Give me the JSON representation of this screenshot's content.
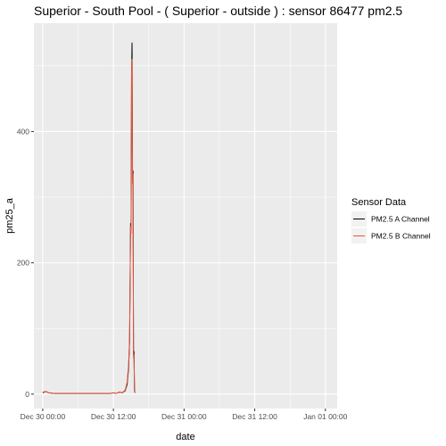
{
  "chart_data": {
    "type": "line",
    "title": "Superior - South Pool - ( Superior - outside ) : sensor 86477 pm2.5",
    "xlabel": "date",
    "ylabel": "pm25_a",
    "x_ticks": [
      "Dec 30 00:00",
      "Dec 30 12:00",
      "Dec 31 00:00",
      "Dec 31 12:00",
      "Jan 01 00:00"
    ],
    "y_ticks": [
      "0",
      "200",
      "400"
    ],
    "xlim": [
      "Dec 29 22:30",
      "Jan 01 02:00"
    ],
    "ylim": [
      -22,
      565
    ],
    "grid": true,
    "background": "#EBEBEB",
    "legend": {
      "title": "Sensor Data",
      "placement": "right",
      "entries": [
        {
          "label": "PM2.5 A Channel",
          "color": "#000000"
        },
        {
          "label": "PM2.5 B Channel",
          "color": "#E8553D"
        }
      ]
    },
    "series": [
      {
        "name": "PM2.5 A Channel",
        "color": "#000000",
        "points": [
          [
            "Dec 30 00:00",
            2
          ],
          [
            "Dec 30 00:30",
            4
          ],
          [
            "Dec 30 01:00",
            2
          ],
          [
            "Dec 30 02:00",
            1
          ],
          [
            "Dec 30 06:00",
            1
          ],
          [
            "Dec 30 10:00",
            1
          ],
          [
            "Dec 30 11:30",
            1
          ],
          [
            "Dec 30 12:00",
            2
          ],
          [
            "Dec 30 12:30",
            1
          ],
          [
            "Dec 30 13:00",
            3
          ],
          [
            "Dec 30 13:30",
            2
          ],
          [
            "Dec 30 14:00",
            5
          ],
          [
            "Dec 30 14:20",
            15
          ],
          [
            "Dec 30 14:35",
            40
          ],
          [
            "Dec 30 14:45",
            80
          ],
          [
            "Dec 30 14:55",
            260
          ],
          [
            "Dec 30 15:00",
            250
          ],
          [
            "Dec 30 15:05",
            480
          ],
          [
            "Dec 30 15:10",
            535
          ],
          [
            "Dec 30 15:15",
            330
          ],
          [
            "Dec 30 15:20",
            340
          ],
          [
            "Dec 30 15:25",
            60
          ],
          [
            "Dec 30 15:30",
            65
          ],
          [
            "Dec 30 15:35",
            5
          ],
          [
            "Dec 30 15:40",
            2
          ]
        ]
      },
      {
        "name": "PM2.5 B Channel",
        "color": "#E8553D",
        "points": [
          [
            "Dec 30 00:00",
            3
          ],
          [
            "Dec 30 00:30",
            4
          ],
          [
            "Dec 30 01:00",
            2
          ],
          [
            "Dec 30 02:00",
            1
          ],
          [
            "Dec 30 06:00",
            1
          ],
          [
            "Dec 30 10:00",
            1
          ],
          [
            "Dec 30 11:30",
            1
          ],
          [
            "Dec 30 12:00",
            2
          ],
          [
            "Dec 30 12:30",
            1
          ],
          [
            "Dec 30 13:00",
            3
          ],
          [
            "Dec 30 13:30",
            2
          ],
          [
            "Dec 30 14:00",
            6
          ],
          [
            "Dec 30 14:20",
            18
          ],
          [
            "Dec 30 14:35",
            45
          ],
          [
            "Dec 30 14:45",
            85
          ],
          [
            "Dec 30 14:55",
            255
          ],
          [
            "Dec 30 15:00",
            245
          ],
          [
            "Dec 30 15:05",
            490
          ],
          [
            "Dec 30 15:10",
            510
          ],
          [
            "Dec 30 15:15",
            320
          ],
          [
            "Dec 30 15:20",
            335
          ],
          [
            "Dec 30 15:25",
            55
          ],
          [
            "Dec 30 15:30",
            60
          ],
          [
            "Dec 30 15:35",
            4
          ],
          [
            "Dec 30 15:40",
            2
          ]
        ]
      }
    ]
  }
}
